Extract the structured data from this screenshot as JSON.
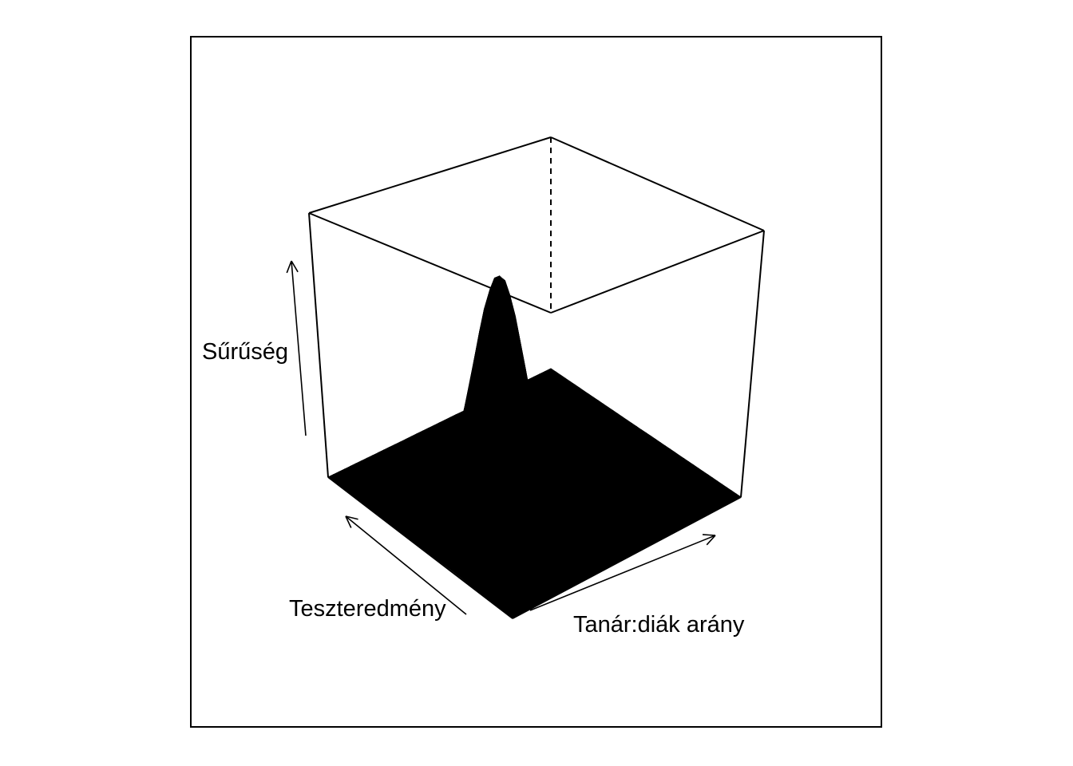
{
  "chart_data": {
    "type": "surface-3d",
    "title": "",
    "xlabel": "Tanár:diák arány",
    "ylabel": "Teszteredmény",
    "zlabel": "Sűrűség",
    "ticks": false,
    "grid": false,
    "colors": {
      "surface_fill": "#000000",
      "mesh": "#000000",
      "box": "#000000",
      "background": "#ffffff"
    },
    "surface": {
      "description_type": "bivariate-density",
      "x_peak": 0.35,
      "y_peak": 0.5,
      "x_spread": 0.11,
      "y_spread": 0.13,
      "correlation": 0.45,
      "peak_density": 1.0,
      "grid_points": 40
    }
  }
}
